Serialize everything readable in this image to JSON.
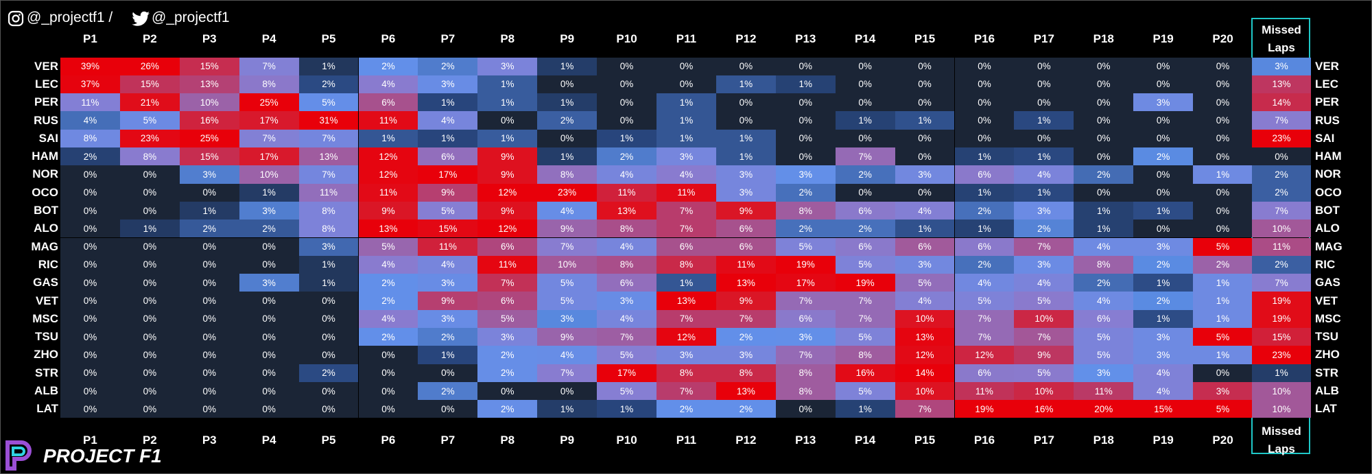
{
  "header": {
    "instagram": "@_projectf1 /",
    "twitter": "@_projectf1"
  },
  "logo": "PROJECT F1",
  "chart_data": {
    "type": "heatmap",
    "x": [
      "P1",
      "P2",
      "P3",
      "P4",
      "P5",
      "P6",
      "P7",
      "P8",
      "P9",
      "P10",
      "P11",
      "P12",
      "P13",
      "P14",
      "P15",
      "P16",
      "P17",
      "P18",
      "P19",
      "P20",
      "Missed Laps"
    ],
    "y": [
      "VER",
      "LEC",
      "PER",
      "RUS",
      "SAI",
      "HAM",
      "NOR",
      "OCO",
      "BOT",
      "ALO",
      "MAG",
      "RIC",
      "GAS",
      "VET",
      "MSC",
      "TSU",
      "ZHO",
      "STR",
      "ALB",
      "LAT"
    ],
    "values": [
      [
        39,
        26,
        15,
        7,
        1,
        2,
        2,
        3,
        1,
        0,
        0,
        0,
        0,
        0,
        0,
        0,
        0,
        0,
        0,
        0,
        3
      ],
      [
        37,
        15,
        13,
        8,
        2,
        4,
        3,
        1,
        0,
        0,
        0,
        1,
        1,
        0,
        0,
        0,
        0,
        0,
        0,
        0,
        13
      ],
      [
        11,
        21,
        10,
        25,
        5,
        6,
        1,
        1,
        1,
        0,
        1,
        0,
        0,
        0,
        0,
        0,
        0,
        0,
        3,
        0,
        14
      ],
      [
        4,
        5,
        16,
        17,
        31,
        11,
        4,
        0,
        2,
        0,
        1,
        0,
        0,
        1,
        1,
        0,
        1,
        0,
        0,
        0,
        7
      ],
      [
        8,
        23,
        25,
        7,
        7,
        1,
        1,
        1,
        0,
        1,
        1,
        1,
        0,
        0,
        0,
        0,
        0,
        0,
        0,
        0,
        23
      ],
      [
        2,
        8,
        15,
        17,
        13,
        12,
        6,
        9,
        1,
        2,
        3,
        1,
        0,
        7,
        0,
        1,
        1,
        0,
        2,
        0,
        0
      ],
      [
        0,
        0,
        3,
        10,
        7,
        12,
        17,
        9,
        8,
        4,
        4,
        3,
        3,
        2,
        3,
        6,
        4,
        2,
        0,
        1,
        2
      ],
      [
        0,
        0,
        0,
        1,
        11,
        11,
        9,
        12,
        23,
        11,
        11,
        3,
        2,
        0,
        0,
        1,
        1,
        0,
        0,
        0,
        2
      ],
      [
        0,
        0,
        1,
        3,
        8,
        9,
        5,
        9,
        4,
        13,
        7,
        9,
        8,
        6,
        4,
        2,
        3,
        1,
        1,
        0,
        7
      ],
      [
        0,
        1,
        2,
        2,
        8,
        13,
        15,
        12,
        9,
        8,
        7,
        6,
        2,
        2,
        1,
        1,
        2,
        1,
        0,
        0,
        10
      ],
      [
        0,
        0,
        0,
        0,
        3,
        5,
        11,
        6,
        7,
        4,
        6,
        6,
        5,
        6,
        6,
        6,
        7,
        4,
        3,
        5,
        11
      ],
      [
        0,
        0,
        0,
        0,
        1,
        4,
        4,
        11,
        10,
        8,
        8,
        11,
        19,
        5,
        3,
        2,
        3,
        8,
        2,
        2,
        2
      ],
      [
        0,
        0,
        0,
        3,
        1,
        2,
        3,
        7,
        5,
        6,
        1,
        13,
        17,
        19,
        5,
        4,
        4,
        2,
        1,
        1,
        7
      ],
      [
        0,
        0,
        0,
        0,
        0,
        2,
        9,
        6,
        5,
        3,
        13,
        9,
        7,
        7,
        4,
        5,
        5,
        4,
        2,
        1,
        19
      ],
      [
        0,
        0,
        0,
        0,
        0,
        4,
        3,
        5,
        3,
        4,
        7,
        7,
        6,
        7,
        10,
        7,
        10,
        6,
        1,
        1,
        19
      ],
      [
        0,
        0,
        0,
        0,
        0,
        2,
        2,
        3,
        9,
        7,
        12,
        2,
        3,
        5,
        13,
        7,
        7,
        5,
        3,
        5,
        15
      ],
      [
        0,
        0,
        0,
        0,
        0,
        0,
        1,
        2,
        4,
        5,
        3,
        3,
        7,
        8,
        12,
        12,
        9,
        5,
        3,
        1,
        23
      ],
      [
        0,
        0,
        0,
        0,
        2,
        0,
        0,
        2,
        7,
        17,
        8,
        8,
        8,
        16,
        14,
        6,
        5,
        3,
        4,
        0,
        1
      ],
      [
        0,
        0,
        0,
        0,
        0,
        0,
        2,
        0,
        0,
        5,
        7,
        13,
        8,
        5,
        10,
        11,
        10,
        11,
        4,
        3,
        10
      ],
      [
        0,
        0,
        0,
        0,
        0,
        0,
        0,
        2,
        1,
        1,
        2,
        2,
        0,
        1,
        7,
        19,
        16,
        20,
        15,
        5,
        10
      ]
    ],
    "value_labels": [
      [
        "39%",
        "26%",
        "15%",
        "7%",
        "1%",
        "2%",
        "2%",
        "3%",
        "1%",
        "0%",
        "0%",
        "0%",
        "0%",
        "0%",
        "0%",
        "0%",
        "0%",
        "0%",
        "0%",
        "0%",
        "3%"
      ],
      [
        "37%",
        "15%",
        "13%",
        "8%",
        "2%",
        "4%",
        "3%",
        "1%",
        "0%",
        "0%",
        "0%",
        "1%",
        "1%",
        "0%",
        "0%",
        "0%",
        "0%",
        "0%",
        "0%",
        "0%",
        "13%"
      ],
      [
        "11%",
        "21%",
        "10%",
        "25%",
        "5%",
        "6%",
        "1%",
        "1%",
        "1%",
        "0%",
        "1%",
        "0%",
        "0%",
        "0%",
        "0%",
        "0%",
        "0%",
        "0%",
        "3%",
        "0%",
        "14%"
      ],
      [
        "4%",
        "5%",
        "16%",
        "17%",
        "31%",
        "11%",
        "4%",
        "0%",
        "2%",
        "0%",
        "1%",
        "0%",
        "0%",
        "1%",
        "1%",
        "0%",
        "1%",
        "0%",
        "0%",
        "0%",
        "7%"
      ],
      [
        "8%",
        "23%",
        "25%",
        "7%",
        "7%",
        "1%",
        "1%",
        "1%",
        "0%",
        "1%",
        "1%",
        "1%",
        "0%",
        "0%",
        "0%",
        "0%",
        "0%",
        "0%",
        "0%",
        "0%",
        "23%"
      ],
      [
        "2%",
        "8%",
        "15%",
        "17%",
        "13%",
        "12%",
        "6%",
        "9%",
        "1%",
        "2%",
        "3%",
        "1%",
        "0%",
        "7%",
        "0%",
        "1%",
        "1%",
        "0%",
        "2%",
        "0%",
        "0%"
      ],
      [
        "0%",
        "0%",
        "3%",
        "10%",
        "7%",
        "12%",
        "17%",
        "9%",
        "8%",
        "4%",
        "4%",
        "3%",
        "3%",
        "2%",
        "3%",
        "6%",
        "4%",
        "2%",
        "0%",
        "1%",
        "2%"
      ],
      [
        "0%",
        "0%",
        "0%",
        "1%",
        "11%",
        "11%",
        "9%",
        "12%",
        "23%",
        "11%",
        "11%",
        "3%",
        "2%",
        "0%",
        "0%",
        "1%",
        "1%",
        "0%",
        "0%",
        "0%",
        "2%"
      ],
      [
        "0%",
        "0%",
        "1%",
        "3%",
        "8%",
        "9%",
        "5%",
        "9%",
        "4%",
        "13%",
        "7%",
        "9%",
        "8%",
        "6%",
        "4%",
        "2%",
        "3%",
        "1%",
        "1%",
        "0%",
        "7%"
      ],
      [
        "0%",
        "1%",
        "2%",
        "2%",
        "8%",
        "13%",
        "15%",
        "12%",
        "9%",
        "8%",
        "7%",
        "6%",
        "2%",
        "2%",
        "1%",
        "1%",
        "2%",
        "1%",
        "0%",
        "0%",
        "10%"
      ],
      [
        "0%",
        "0%",
        "0%",
        "0%",
        "3%",
        "5%",
        "11%",
        "6%",
        "7%",
        "4%",
        "6%",
        "6%",
        "5%",
        "6%",
        "6%",
        "6%",
        "7%",
        "4%",
        "3%",
        "5%",
        "11%"
      ],
      [
        "0%",
        "0%",
        "0%",
        "0%",
        "1%",
        "4%",
        "4%",
        "11%",
        "10%",
        "8%",
        "8%",
        "11%",
        "19%",
        "5%",
        "3%",
        "2%",
        "3%",
        "8%",
        "2%",
        "2%",
        "2%"
      ],
      [
        "0%",
        "0%",
        "0%",
        "3%",
        "1%",
        "2%",
        "3%",
        "7%",
        "5%",
        "6%",
        "1%",
        "13%",
        "17%",
        "19%",
        "5%",
        "4%",
        "4%",
        "2%",
        "1%",
        "1%",
        "7%"
      ],
      [
        "0%",
        "0%",
        "0%",
        "0%",
        "0%",
        "2%",
        "9%",
        "6%",
        "5%",
        "3%",
        "13%",
        "9%",
        "7%",
        "7%",
        "4%",
        "5%",
        "5%",
        "4%",
        "2%",
        "1%",
        "19%"
      ],
      [
        "0%",
        "0%",
        "0%",
        "0%",
        "0%",
        "4%",
        "3%",
        "5%",
        "3%",
        "4%",
        "7%",
        "7%",
        "6%",
        "7%",
        "10%",
        "7%",
        "10%",
        "6%",
        "1%",
        "1%",
        "19%"
      ],
      [
        "0%",
        "0%",
        "0%",
        "0%",
        "0%",
        "2%",
        "2%",
        "3%",
        "9%",
        "7%",
        "12%",
        "2%",
        "3%",
        "5%",
        "13%",
        "7%",
        "7%",
        "5%",
        "3%",
        "5%",
        "15%"
      ],
      [
        "0%",
        "0%",
        "0%",
        "0%",
        "0%",
        "0%",
        "1%",
        "2%",
        "4%",
        "5%",
        "3%",
        "3%",
        "7%",
        "8%",
        "12%",
        "12%",
        "9%",
        "5%",
        "3%",
        "1%",
        "23%"
      ],
      [
        "0%",
        "0%",
        "0%",
        "0%",
        "2%",
        "0%",
        "0%",
        "2%",
        "7%",
        "17%",
        "8%",
        "8%",
        "8%",
        "16%",
        "14%",
        "6%",
        "5%",
        "3%",
        "4%",
        "0%",
        "1%"
      ],
      [
        "0%",
        "0%",
        "0%",
        "0%",
        "0%",
        "0%",
        "2%",
        "0%",
        "0%",
        "5%",
        "7%",
        "13%",
        "8%",
        "5%",
        "10%",
        "11%",
        "10%",
        "11%",
        "4%",
        "3%",
        "10%"
      ],
      [
        "0%",
        "0%",
        "0%",
        "0%",
        "0%",
        "0%",
        "0%",
        "2%",
        "1%",
        "1%",
        "2%",
        "2%",
        "0%",
        "1%",
        "7%",
        "19%",
        "16%",
        "20%",
        "15%",
        "5%",
        "10%"
      ]
    ]
  }
}
